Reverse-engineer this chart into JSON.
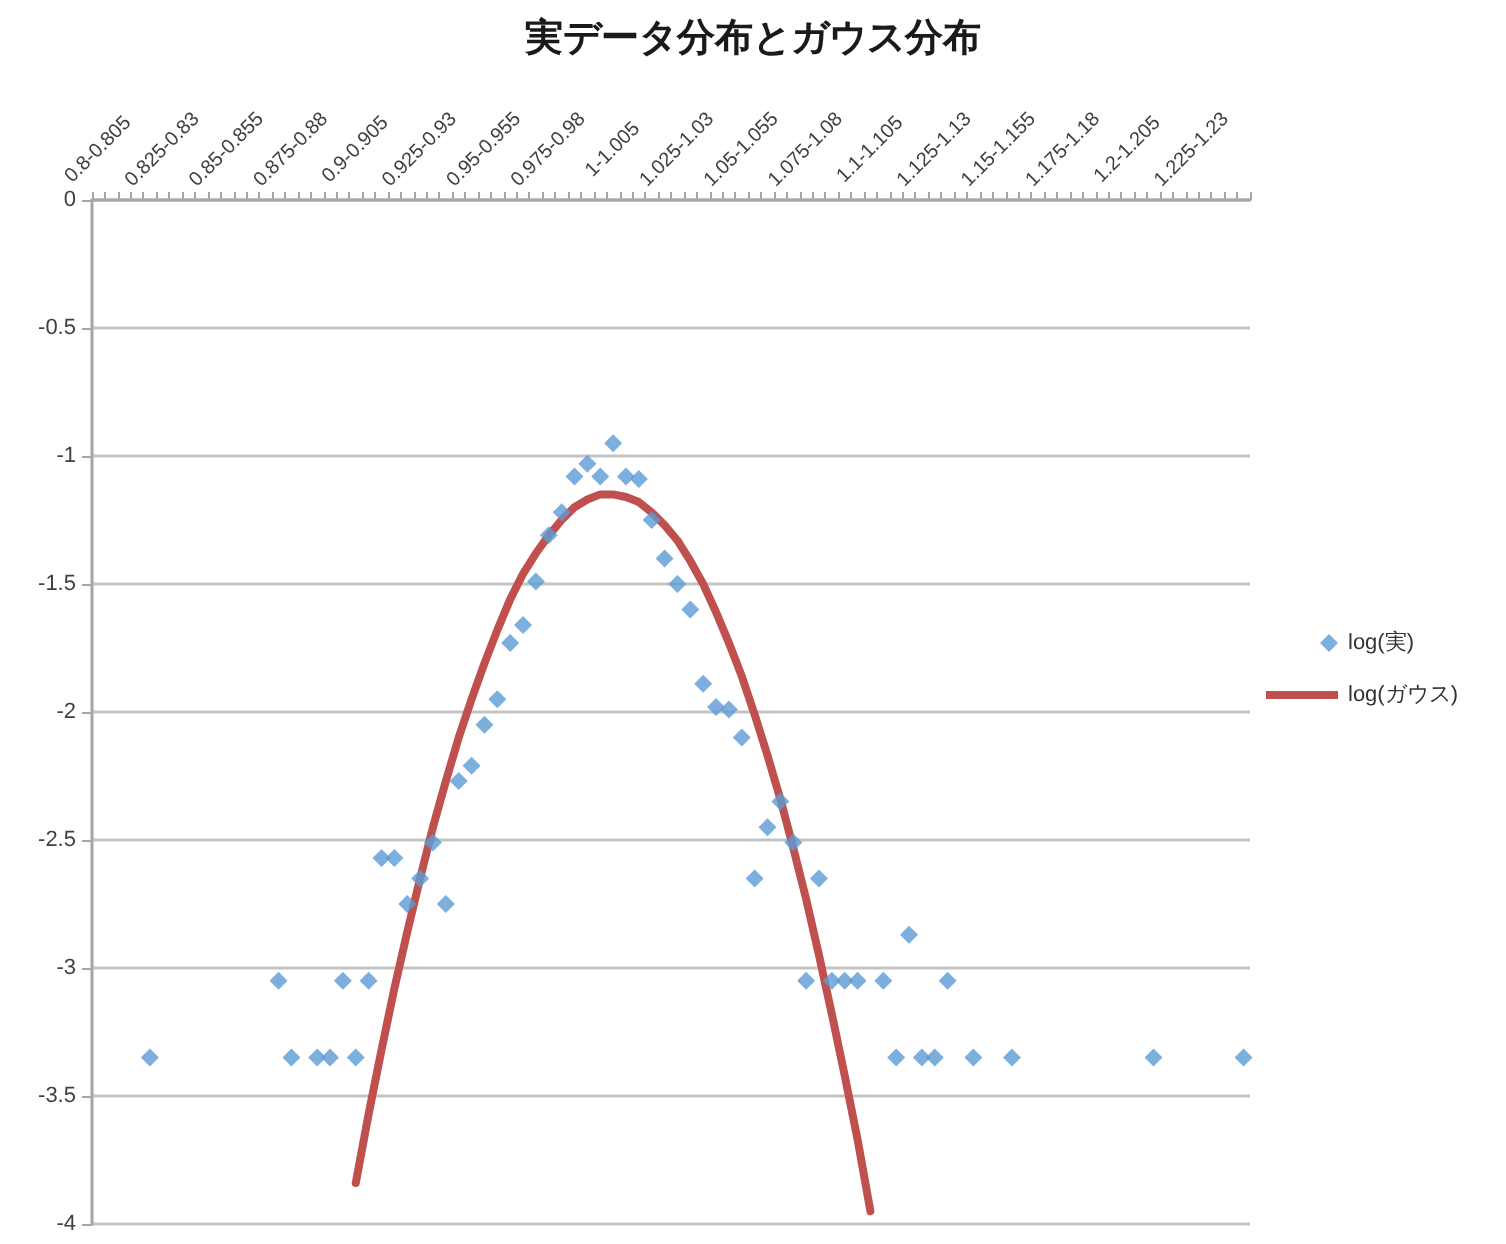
{
  "chart_data": {
    "type": "scatter",
    "title": "実データ分布とガウス分布",
    "categories": [
      "0.8-0.805",
      null,
      null,
      null,
      null,
      "0.825-0.83",
      null,
      null,
      null,
      null,
      "0.85-0.855",
      null,
      null,
      null,
      null,
      "0.875-0.88",
      null,
      null,
      null,
      null,
      "0.9-0.905",
      null,
      null,
      null,
      null,
      "0.925-0.93",
      null,
      null,
      null,
      null,
      "0.95-0.955",
      null,
      null,
      null,
      null,
      "0.975-0.98",
      null,
      null,
      null,
      null,
      "1-1.005",
      null,
      null,
      null,
      null,
      "1.025-1.03",
      null,
      null,
      null,
      null,
      "1.05-1.055",
      null,
      null,
      null,
      null,
      "1.075-1.08",
      null,
      null,
      null,
      null,
      "1.1-1.105",
      null,
      null,
      null,
      null,
      "1.125-1.13",
      null,
      null,
      null,
      null,
      "1.15-1.155",
      null,
      null,
      null,
      null,
      "1.175-1.18",
      null,
      null,
      null,
      null,
      "1.2-1.205",
      null,
      null,
      null,
      null,
      "1.225-1.23",
      null,
      null,
      null,
      null
    ],
    "series": [
      {
        "name": "log(実)",
        "color": "#5b9bd5",
        "values": [
          null,
          null,
          null,
          null,
          -3.35,
          null,
          null,
          null,
          null,
          null,
          null,
          null,
          null,
          null,
          -3.05,
          -3.35,
          null,
          -3.35,
          -3.35,
          -3.05,
          -3.35,
          -3.05,
          -2.57,
          -2.57,
          -2.75,
          -2.65,
          -2.51,
          -2.75,
          -2.27,
          -2.21,
          -2.05,
          -1.95,
          -1.73,
          -1.66,
          -1.49,
          -1.31,
          -1.22,
          -1.08,
          -1.03,
          -1.08,
          -0.95,
          -1.08,
          -1.09,
          -1.25,
          -1.4,
          -1.5,
          -1.6,
          -1.89,
          -1.98,
          -1.99,
          -2.1,
          -2.65,
          -2.45,
          -2.35,
          -2.51,
          -3.05,
          -2.65,
          -3.05,
          -3.05,
          -3.05,
          null,
          -3.05,
          -3.35,
          -2.87,
          -3.35,
          -3.35,
          -3.05,
          null,
          -3.35,
          null,
          null,
          -3.35,
          null,
          null,
          null,
          null,
          null,
          null,
          null,
          null,
          null,
          null,
          -3.35,
          null,
          null,
          null,
          null,
          null,
          null,
          -3.35
        ]
      },
      {
        "name": "log(ガウス)",
        "type": "line",
        "color": "#c0504d",
        "marker": "none",
        "values": [
          null,
          null,
          null,
          null,
          null,
          null,
          null,
          null,
          null,
          null,
          null,
          null,
          null,
          null,
          null,
          null,
          null,
          null,
          null,
          null,
          -3.84,
          -3.57,
          -3.32,
          -3.08,
          -2.86,
          -2.65,
          -2.45,
          -2.27,
          -2.1,
          -1.95,
          -1.81,
          -1.68,
          -1.56,
          -1.46,
          -1.38,
          -1.31,
          -1.25,
          -1.2,
          -1.17,
          -1.15,
          -1.15,
          -1.16,
          -1.18,
          -1.22,
          -1.27,
          -1.33,
          -1.41,
          -1.5,
          -1.61,
          -1.73,
          -1.86,
          -2.01,
          -2.17,
          -2.34,
          -2.53,
          -2.73,
          -2.95,
          -3.18,
          -3.42,
          -3.67,
          -3.95,
          null,
          null,
          null,
          null,
          null,
          null,
          null,
          null,
          null,
          null,
          null,
          null,
          null,
          null,
          null,
          null,
          null,
          null,
          null,
          null,
          null,
          null,
          null,
          null,
          null,
          null,
          null,
          null,
          null
        ]
      }
    ],
    "ylim": [
      -4,
      0
    ],
    "yticks": [
      -4,
      -3.5,
      -3,
      -2.5,
      -2,
      -1.5,
      -1,
      -0.5,
      0
    ],
    "grid": "y",
    "legend": "right",
    "marker": "diamond",
    "line_style": "solid"
  }
}
